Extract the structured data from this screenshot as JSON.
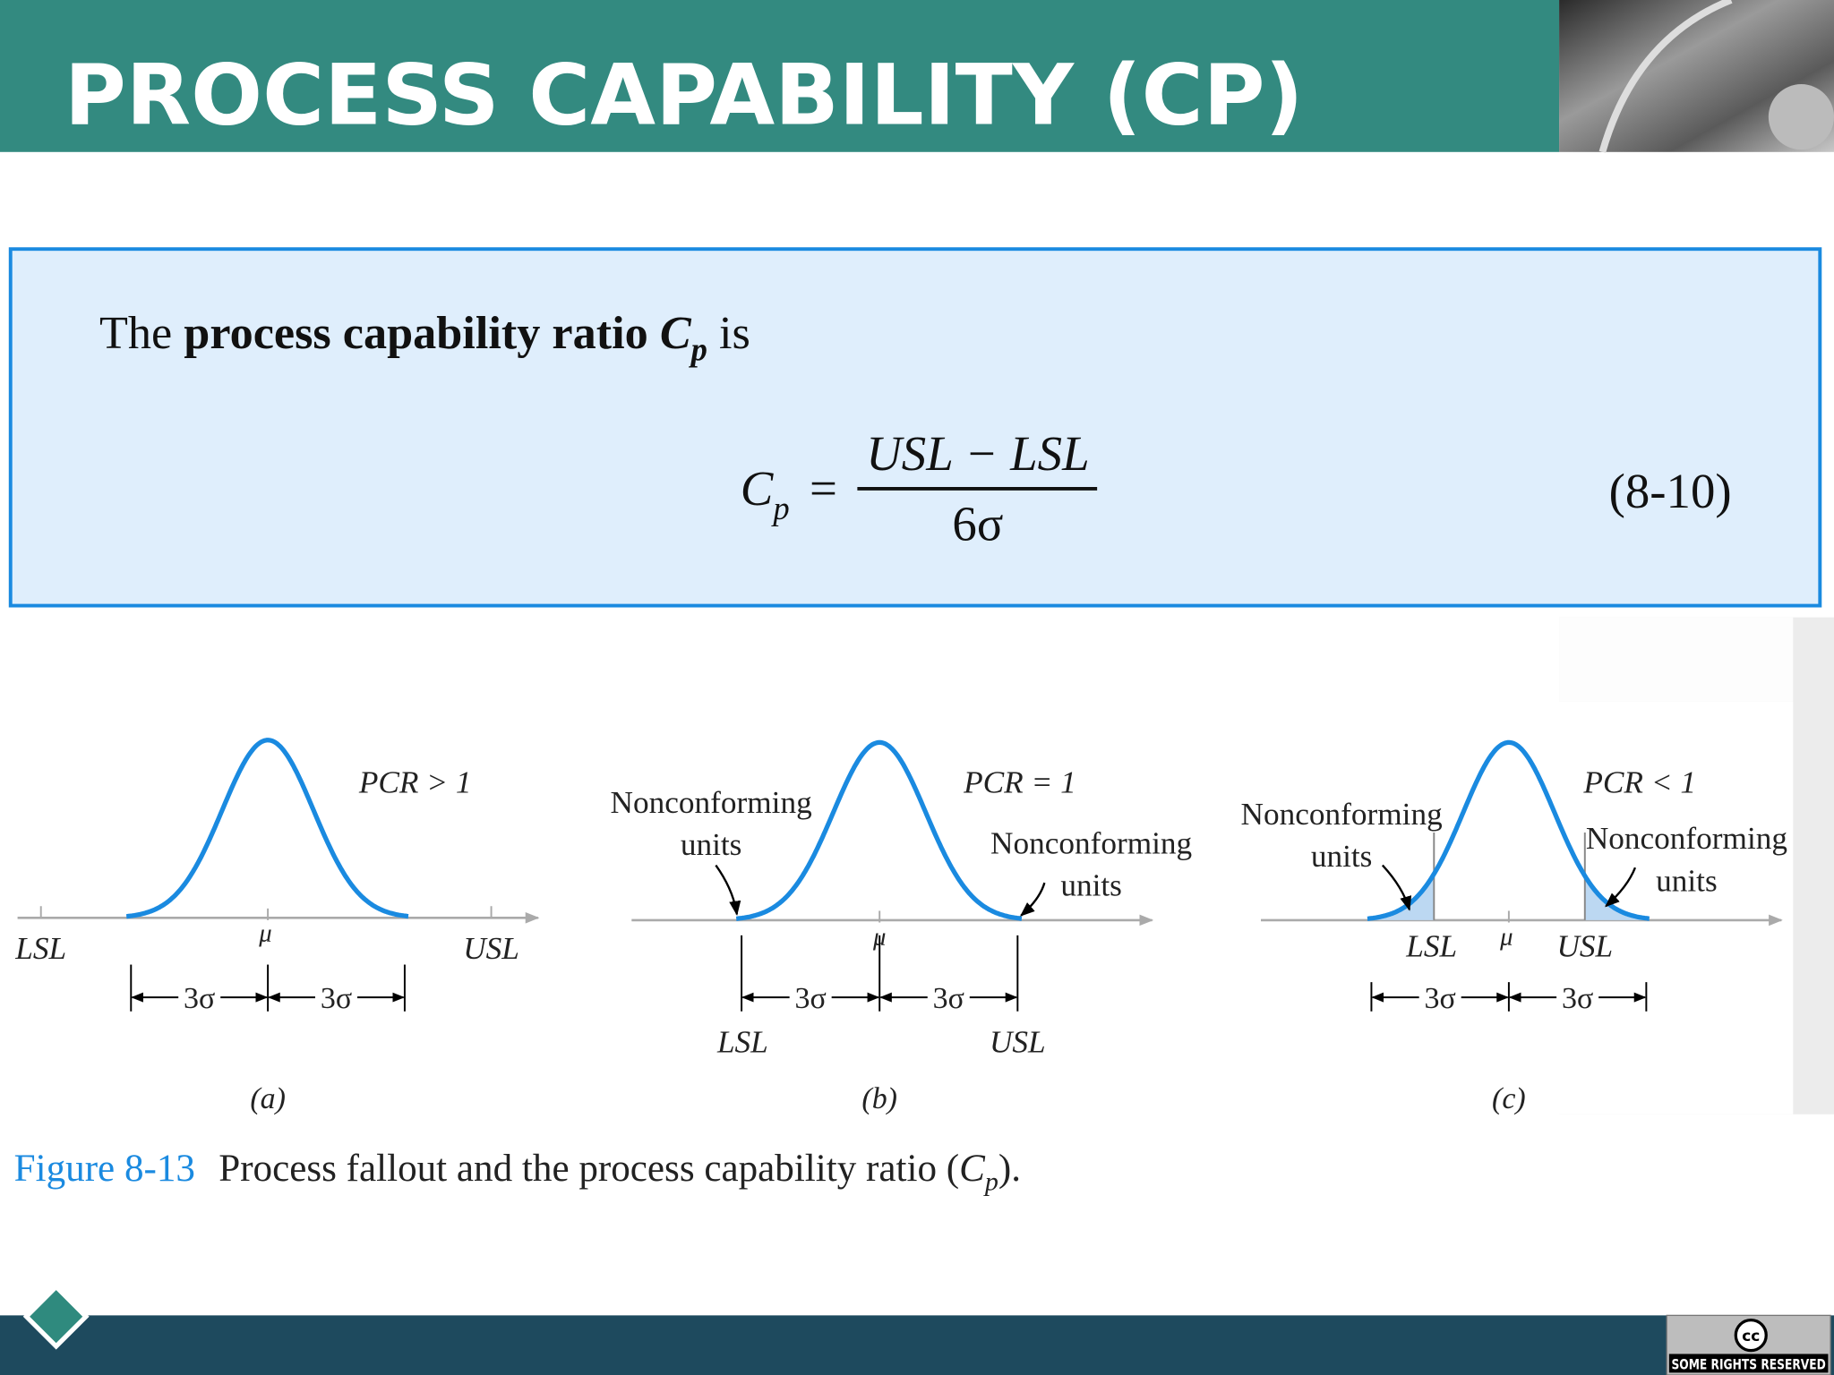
{
  "header": {
    "title": "PROCESS CAPABILITY (CP)"
  },
  "definition": {
    "lead": "The",
    "term": "process capability ratio",
    "symbol": "C",
    "subscript": "p",
    "tail": "is"
  },
  "formula": {
    "lhs": "C",
    "lhs_subscript": "p",
    "relation": "=",
    "numerator": "USL − LSL",
    "denominator": "6σ",
    "number": "(8-10)"
  },
  "figure": {
    "panels": [
      {
        "ratio": "PCR > 1",
        "lsl": "LSL",
        "usl": "USL",
        "mean": "μ",
        "half_widths": [
          "3σ",
          "3σ"
        ],
        "label": "(a)"
      },
      {
        "ratio": "PCR = 1",
        "lsl": "LSL",
        "usl": "USL",
        "mean": "μ",
        "half_widths": [
          "3σ",
          "3σ"
        ],
        "label": "(b)",
        "left_note": [
          "Nonconforming",
          "units"
        ],
        "right_note": [
          "Nonconforming",
          "units"
        ]
      },
      {
        "ratio": "PCR < 1",
        "lsl": "LSL",
        "usl": "USL",
        "mean": "μ",
        "half_widths": [
          "3σ",
          "3σ"
        ],
        "label": "(c)",
        "left_note": [
          "Nonconforming",
          "units"
        ],
        "right_note": [
          "Nonconforming",
          "units"
        ]
      }
    ],
    "caption": {
      "number": "Figure 8-13",
      "text": "Process fallout and the process capability ratio (",
      "symbol": "C",
      "subscript": "p",
      "end": ")."
    }
  },
  "footer": {
    "badge": "cc",
    "license": "SOME RIGHTS RESERVED"
  }
}
